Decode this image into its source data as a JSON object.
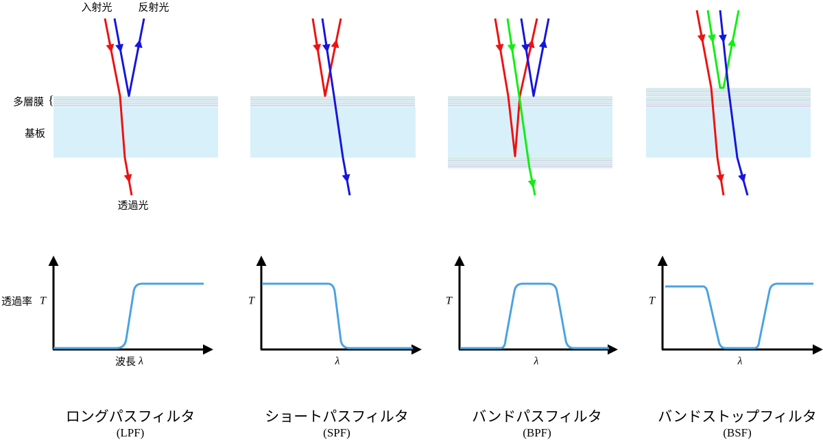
{
  "labels": {
    "incident": "入射光",
    "reflected": "反射光",
    "multilayer": "多層膜",
    "substrate": "基板",
    "transmitted": "透過光",
    "transmittance": "透過率",
    "T": "T",
    "wavelength": "波長",
    "lambda": "λ"
  },
  "panels": [
    {
      "name": "ロングパスフィルタ",
      "abbr": "(LPF)"
    },
    {
      "name": "ショートパスフィルタ",
      "abbr": "(SPF)"
    },
    {
      "name": "バンドパスフィルタ",
      "abbr": "(BPF)"
    },
    {
      "name": "バンドストップフィルタ",
      "abbr": "(BSF)"
    }
  ]
}
